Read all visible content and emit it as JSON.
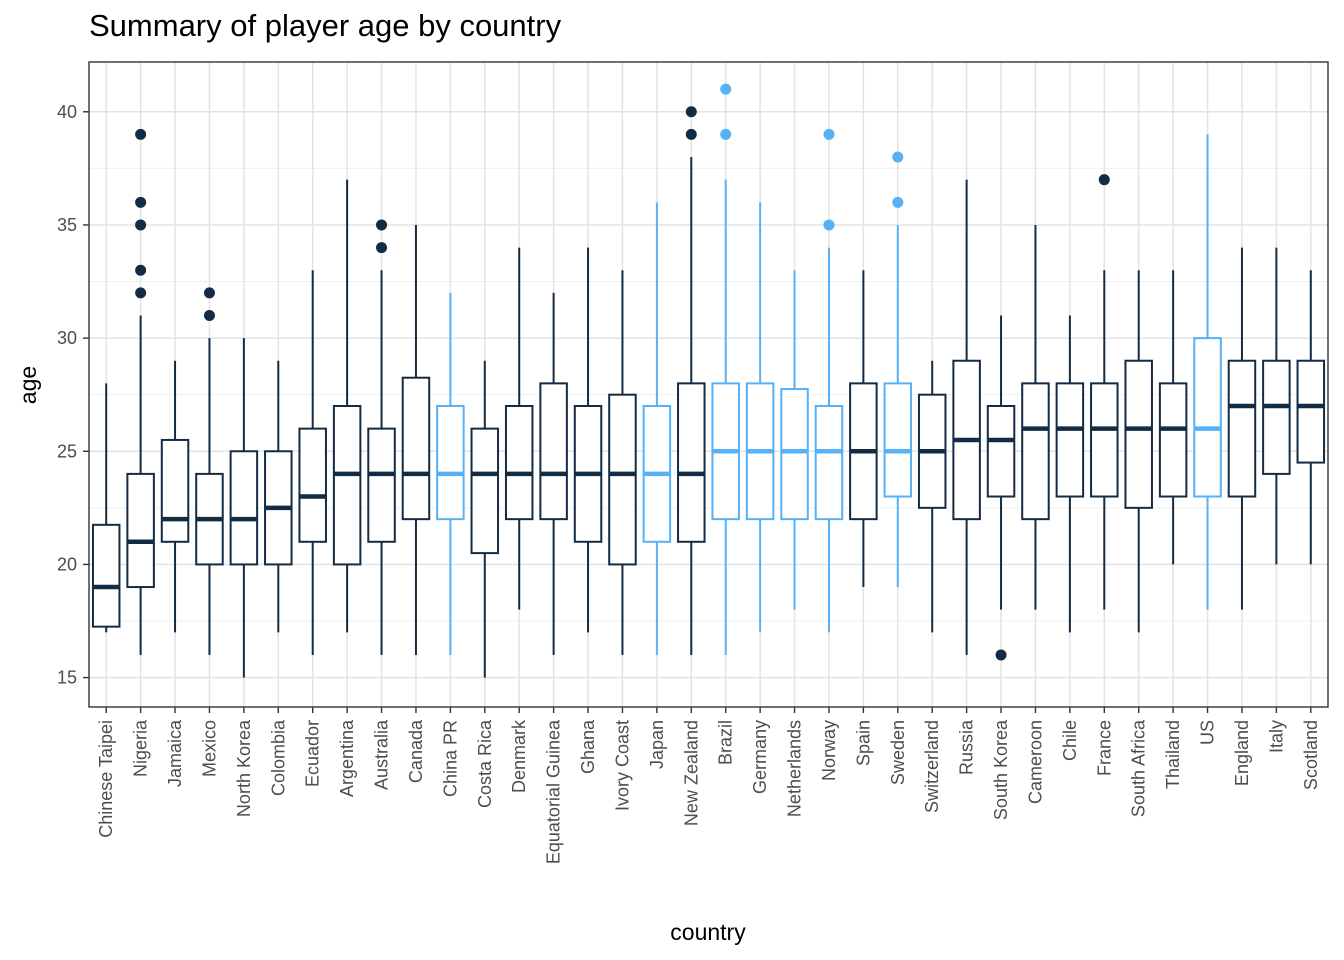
{
  "chart_data": {
    "type": "boxplot",
    "title": "Summary of player age by country",
    "xlabel": "country",
    "ylabel": "age",
    "ylim": [
      13.7,
      42.2
    ],
    "yticks": [
      15,
      20,
      25,
      30,
      35,
      40
    ],
    "grid": true,
    "colors": {
      "default": "#132b43",
      "highlight": "#56b1f7"
    },
    "boxes": [
      {
        "country": "Chinese Taipei",
        "min": 17,
        "q1": 17.25,
        "median": 19,
        "q3": 21.75,
        "max": 28,
        "outliers": [],
        "highlight": false
      },
      {
        "country": "Nigeria",
        "min": 16,
        "q1": 19,
        "median": 21,
        "q3": 24,
        "max": 31,
        "outliers": [
          32,
          33,
          35,
          36,
          39
        ],
        "highlight": false
      },
      {
        "country": "Jamaica",
        "min": 17,
        "q1": 21,
        "median": 22,
        "q3": 25.5,
        "max": 29,
        "outliers": [],
        "highlight": false
      },
      {
        "country": "Mexico",
        "min": 16,
        "q1": 20,
        "median": 22,
        "q3": 24,
        "max": 30,
        "outliers": [
          31,
          32
        ],
        "highlight": false
      },
      {
        "country": "North Korea",
        "min": 15,
        "q1": 20,
        "median": 22,
        "q3": 25,
        "max": 30,
        "outliers": [],
        "highlight": false
      },
      {
        "country": "Colombia",
        "min": 17,
        "q1": 20,
        "median": 22.5,
        "q3": 25,
        "max": 29,
        "outliers": [],
        "highlight": false
      },
      {
        "country": "Ecuador",
        "min": 16,
        "q1": 21,
        "median": 23,
        "q3": 26,
        "max": 33,
        "outliers": [],
        "highlight": false
      },
      {
        "country": "Argentina",
        "min": 17,
        "q1": 20,
        "median": 24,
        "q3": 27,
        "max": 37,
        "outliers": [],
        "highlight": false
      },
      {
        "country": "Australia",
        "min": 16,
        "q1": 21,
        "median": 24,
        "q3": 26,
        "max": 33,
        "outliers": [
          34,
          35
        ],
        "highlight": false
      },
      {
        "country": "Canada",
        "min": 16,
        "q1": 22,
        "median": 24,
        "q3": 28.25,
        "max": 35,
        "outliers": [],
        "highlight": false
      },
      {
        "country": "China PR",
        "min": 16,
        "q1": 22,
        "median": 24,
        "q3": 27,
        "max": 32,
        "outliers": [],
        "highlight": true
      },
      {
        "country": "Costa Rica",
        "min": 15,
        "q1": 20.5,
        "median": 24,
        "q3": 26,
        "max": 29,
        "outliers": [],
        "highlight": false
      },
      {
        "country": "Denmark",
        "min": 18,
        "q1": 22,
        "median": 24,
        "q3": 27,
        "max": 34,
        "outliers": [],
        "highlight": false
      },
      {
        "country": "Equatorial Guinea",
        "min": 16,
        "q1": 22,
        "median": 24,
        "q3": 28,
        "max": 32,
        "outliers": [],
        "highlight": false
      },
      {
        "country": "Ghana",
        "min": 17,
        "q1": 21,
        "median": 24,
        "q3": 27,
        "max": 34,
        "outliers": [],
        "highlight": false
      },
      {
        "country": "Ivory Coast",
        "min": 16,
        "q1": 20,
        "median": 24,
        "q3": 27.5,
        "max": 33,
        "outliers": [],
        "highlight": false
      },
      {
        "country": "Japan",
        "min": 16,
        "q1": 21,
        "median": 24,
        "q3": 27,
        "max": 36,
        "outliers": [],
        "highlight": true
      },
      {
        "country": "New Zealand",
        "min": 16,
        "q1": 21,
        "median": 24,
        "q3": 28,
        "max": 38,
        "outliers": [
          39,
          40
        ],
        "highlight": false
      },
      {
        "country": "Brazil",
        "min": 16,
        "q1": 22,
        "median": 25,
        "q3": 28,
        "max": 37,
        "outliers": [
          39,
          41
        ],
        "highlight": true
      },
      {
        "country": "Germany",
        "min": 17,
        "q1": 22,
        "median": 25,
        "q3": 28,
        "max": 36,
        "outliers": [],
        "highlight": true
      },
      {
        "country": "Netherlands",
        "min": 18,
        "q1": 22,
        "median": 25,
        "q3": 27.75,
        "max": 33,
        "outliers": [],
        "highlight": true
      },
      {
        "country": "Norway",
        "min": 17,
        "q1": 22,
        "median": 25,
        "q3": 27,
        "max": 34,
        "outliers": [
          35,
          39
        ],
        "highlight": true
      },
      {
        "country": "Spain",
        "min": 19,
        "q1": 22,
        "median": 25,
        "q3": 28,
        "max": 33,
        "outliers": [],
        "highlight": false
      },
      {
        "country": "Sweden",
        "min": 19,
        "q1": 23,
        "median": 25,
        "q3": 28,
        "max": 35,
        "outliers": [
          36,
          38
        ],
        "highlight": true
      },
      {
        "country": "Switzerland",
        "min": 17,
        "q1": 22.5,
        "median": 25,
        "q3": 27.5,
        "max": 29,
        "outliers": [],
        "highlight": false
      },
      {
        "country": "Russia",
        "min": 16,
        "q1": 22,
        "median": 25.5,
        "q3": 29,
        "max": 37,
        "outliers": [],
        "highlight": false
      },
      {
        "country": "South Korea",
        "min": 18,
        "q1": 23,
        "median": 25.5,
        "q3": 27,
        "max": 31,
        "outliers": [
          16
        ],
        "highlight": false
      },
      {
        "country": "Cameroon",
        "min": 18,
        "q1": 22,
        "median": 26,
        "q3": 28,
        "max": 35,
        "outliers": [],
        "highlight": false
      },
      {
        "country": "Chile",
        "min": 17,
        "q1": 23,
        "median": 26,
        "q3": 28,
        "max": 31,
        "outliers": [],
        "highlight": false
      },
      {
        "country": "France",
        "min": 18,
        "q1": 23,
        "median": 26,
        "q3": 28,
        "max": 33,
        "outliers": [
          37
        ],
        "highlight": false
      },
      {
        "country": "South Africa",
        "min": 17,
        "q1": 22.5,
        "median": 26,
        "q3": 29,
        "max": 33,
        "outliers": [],
        "highlight": false
      },
      {
        "country": "Thailand",
        "min": 20,
        "q1": 23,
        "median": 26,
        "q3": 28,
        "max": 33,
        "outliers": [],
        "highlight": false
      },
      {
        "country": "US",
        "min": 18,
        "q1": 23,
        "median": 26,
        "q3": 30,
        "max": 39,
        "outliers": [],
        "highlight": true
      },
      {
        "country": "England",
        "min": 18,
        "q1": 23,
        "median": 27,
        "q3": 29,
        "max": 34,
        "outliers": [],
        "highlight": false
      },
      {
        "country": "Italy",
        "min": 20,
        "q1": 24,
        "median": 27,
        "q3": 29,
        "max": 34,
        "outliers": [],
        "highlight": false
      },
      {
        "country": "Scotland",
        "min": 20,
        "q1": 24.5,
        "median": 27,
        "q3": 29,
        "max": 33,
        "outliers": [],
        "highlight": false
      }
    ]
  }
}
